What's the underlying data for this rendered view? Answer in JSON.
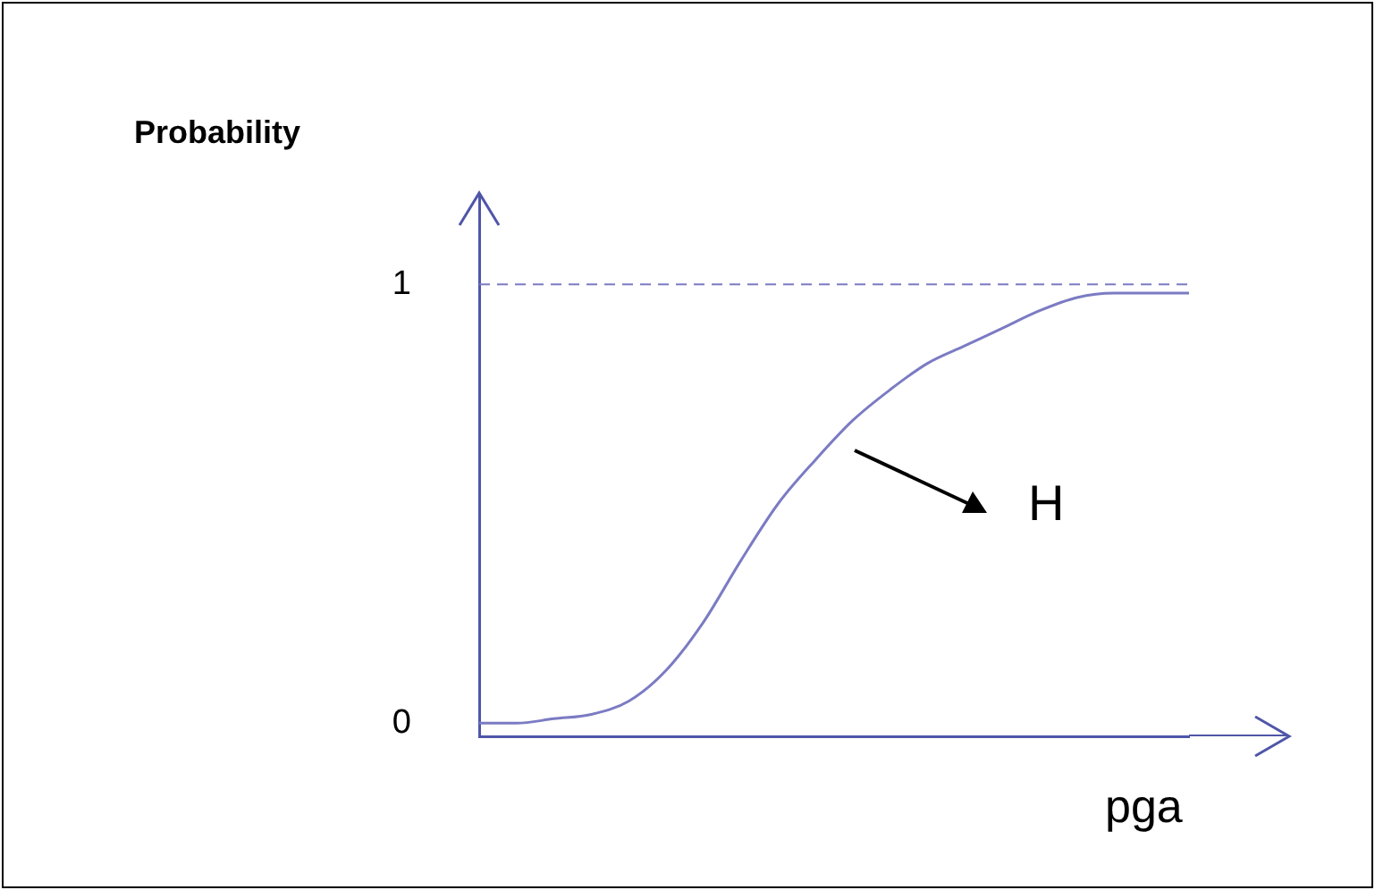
{
  "chart_data": {
    "type": "line",
    "xlabel": "pga",
    "ylabel": "Probability",
    "categories": [
      null,
      null,
      null,
      null,
      null,
      null,
      null,
      null,
      null,
      null,
      null,
      null,
      null,
      null,
      null,
      null,
      null,
      null,
      null,
      null
    ],
    "series": [
      {
        "name": "H",
        "color": "#7b7bc4",
        "values": [
          0,
          0,
          0.01,
          0.02,
          0.05,
          0.12,
          0.23,
          0.37,
          0.5,
          0.6,
          0.69,
          0.76,
          0.82,
          0.86,
          0.9,
          0.94,
          0.97,
          0.98,
          0.98,
          0.98
        ]
      }
    ],
    "ylim": [
      -0.03,
      1.2
    ],
    "yticks": [
      0,
      1
    ],
    "tick_labels": "y",
    "grid": false,
    "legend": false,
    "marker": "none",
    "line_style": "solid",
    "ref_lines": [
      {
        "axis": "y",
        "value": 1,
        "color": "#7b7bc4",
        "line_style": "dashed"
      }
    ]
  }
}
